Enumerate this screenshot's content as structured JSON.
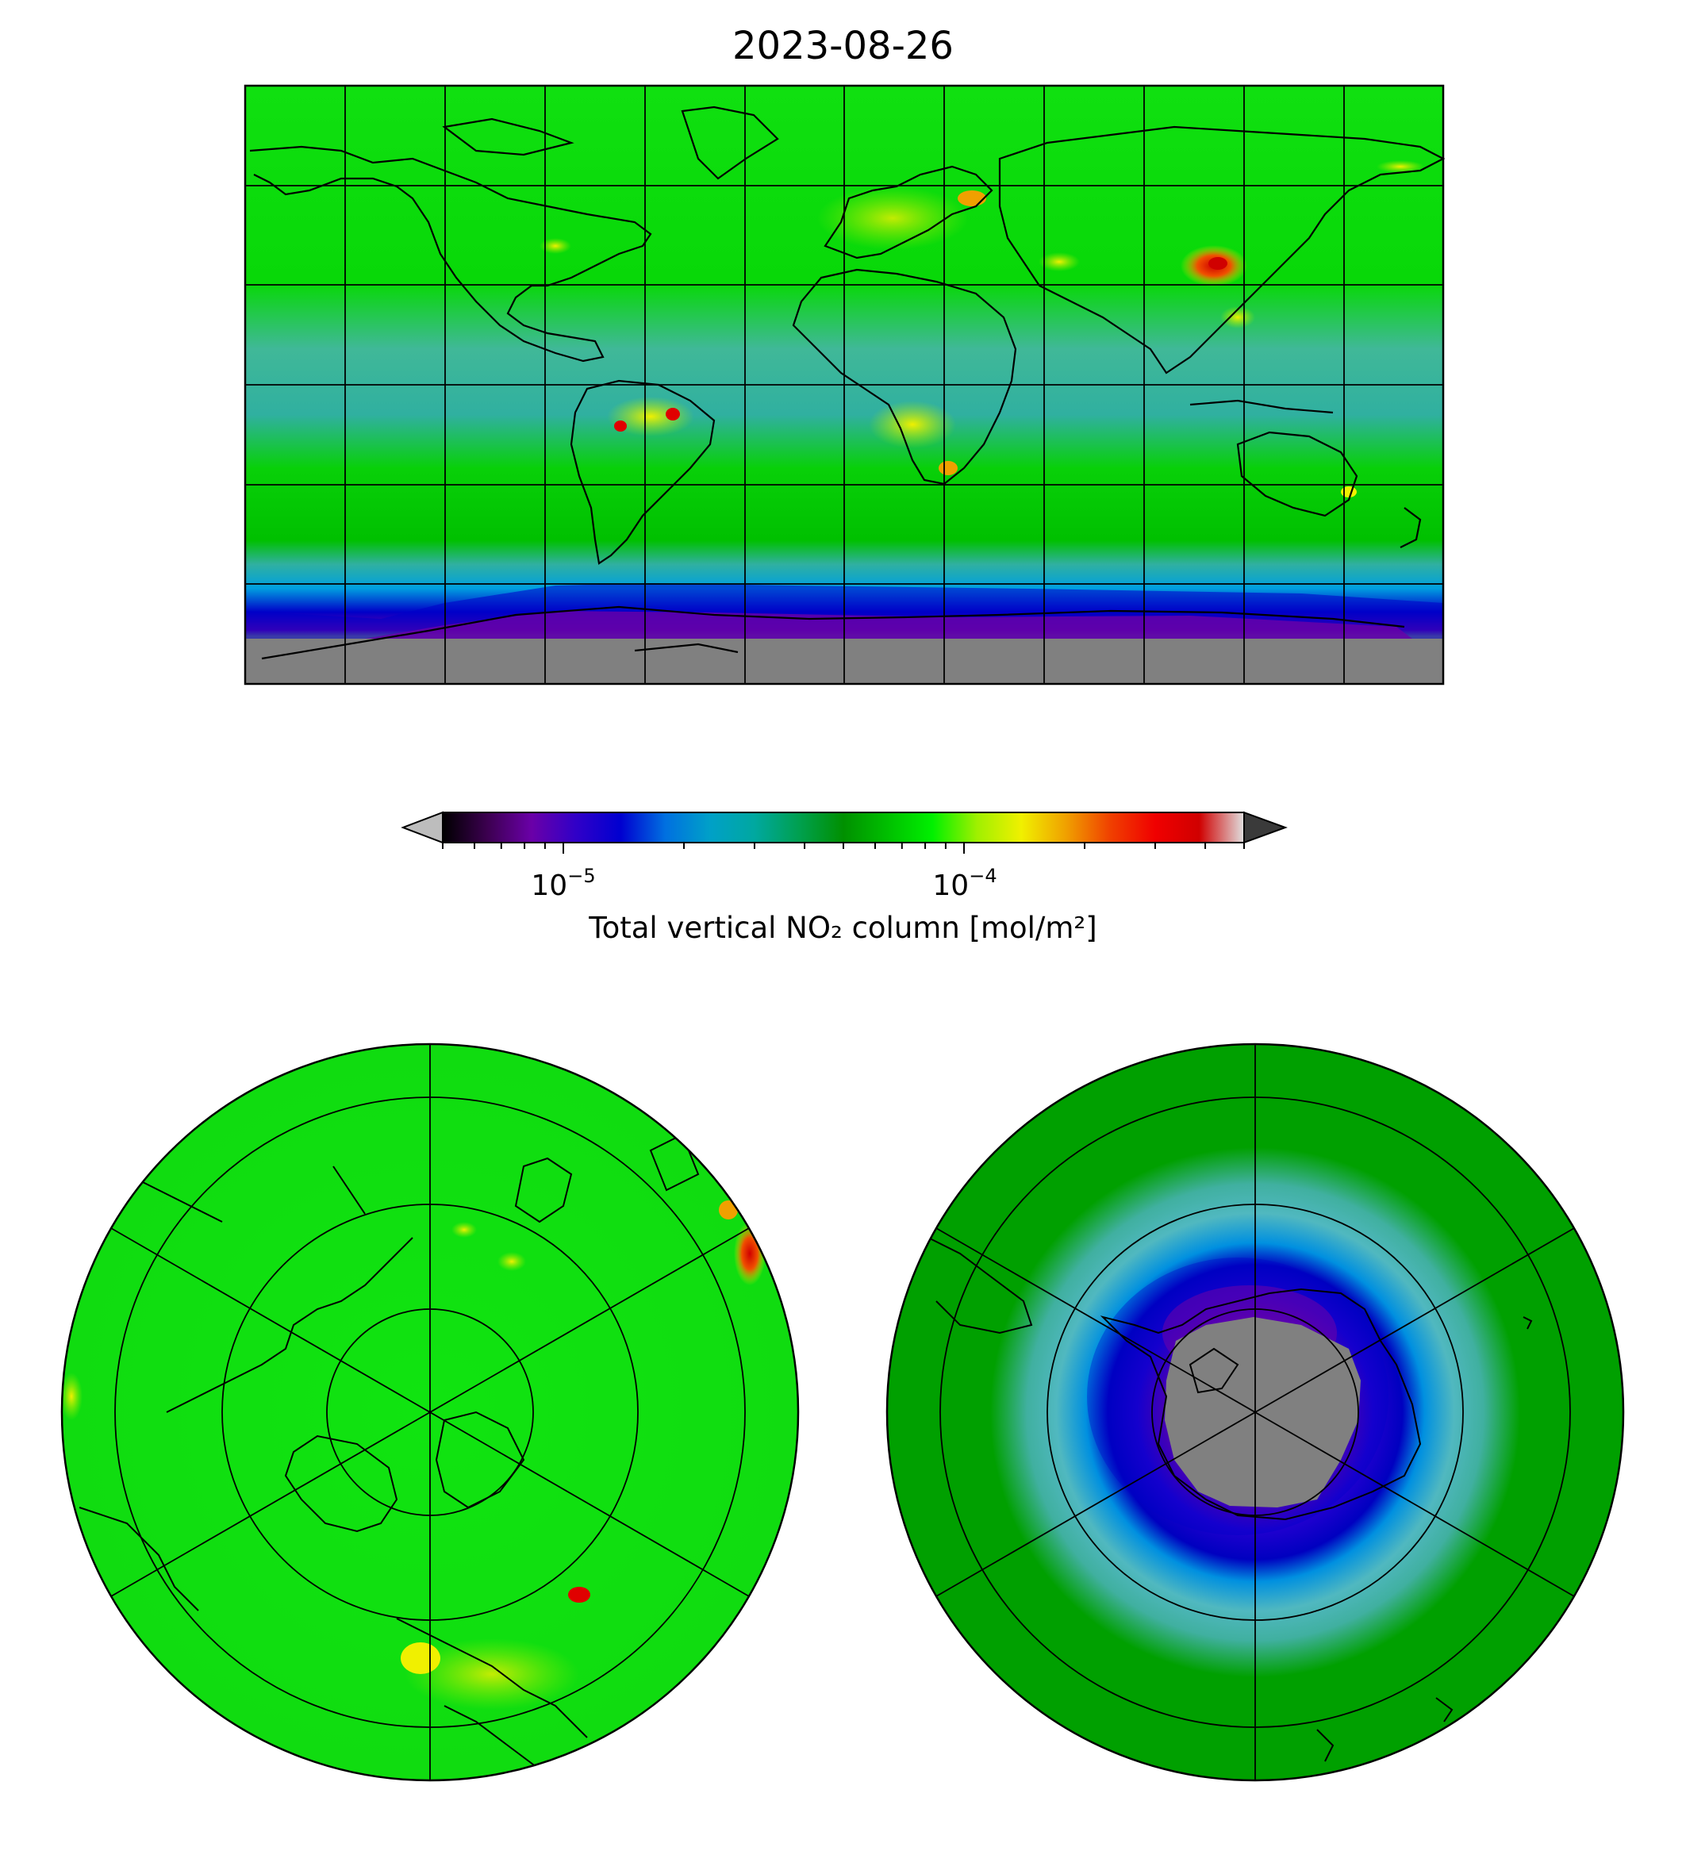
{
  "title": "2023-08-26",
  "colorbar": {
    "label": "Total vertical NO₂ column [mol/m²]",
    "scale": "log",
    "range": [
      5e-06,
      0.0005
    ],
    "extend": "both",
    "ticks": [
      {
        "mantissa": "10",
        "exp": "−5",
        "value": 1e-05
      },
      {
        "mantissa": "10",
        "exp": "−4",
        "value": 0.0001
      }
    ],
    "colormap": [
      "#000000",
      "#3c0050",
      "#6a00a8",
      "#3000c8",
      "#0000d0",
      "#0070e0",
      "#00a0c8",
      "#00a8a0",
      "#00a050",
      "#009000",
      "#00c000",
      "#00f000",
      "#a0f000",
      "#f0f000",
      "#f0a000",
      "#f04000",
      "#f00000",
      "#d00000",
      "#e0e0e0"
    ],
    "under_color": "#bdbdbd",
    "over_color": "#3a3a3a"
  },
  "maps": [
    {
      "name": "global-map",
      "projection": "PlateCarree",
      "gridlines": {
        "lon_step": 30,
        "lat_step": 30
      }
    },
    {
      "name": "north-polar-map",
      "projection": "NorthPolarStereo",
      "gridlines": {
        "lon_step": 60,
        "lat_rings": 4
      }
    },
    {
      "name": "south-polar-map",
      "projection": "SouthPolarStereo",
      "gridlines": {
        "lon_step": 60,
        "lat_rings": 4
      }
    }
  ],
  "colors": {
    "bg_green": "#10e010",
    "tropics_teal": "#40b898",
    "southern_blue": "#0000c8",
    "antarctic_purple": "#7000a8",
    "no_data_gray": "#808080",
    "hotspot_red": "#e00000",
    "hotspot_yellow": "#f0f000"
  }
}
